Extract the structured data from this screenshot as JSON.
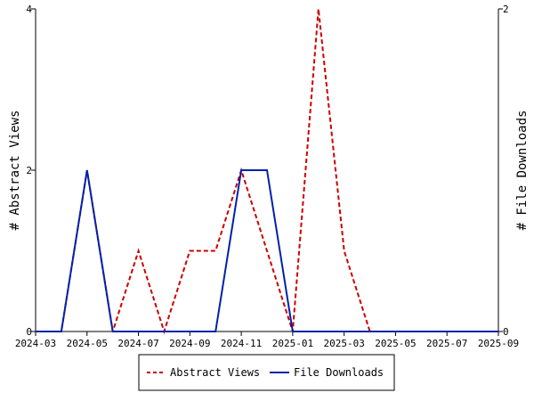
{
  "chart_data": {
    "type": "line",
    "x": [
      "2024-03",
      "2024-04",
      "2024-05",
      "2024-06",
      "2024-07",
      "2024-08",
      "2024-09",
      "2024-10",
      "2024-11",
      "2024-12",
      "2025-01",
      "2025-02",
      "2025-03",
      "2025-04",
      "2025-05",
      "2025-06",
      "2025-07",
      "2025-08",
      "2025-09"
    ],
    "x_tick_labels": [
      "2024-03",
      "2024-05",
      "2024-07",
      "2024-09",
      "2024-11",
      "2025-01",
      "2025-03",
      "2025-05",
      "2025-07",
      "2025-09"
    ],
    "ylabel_left": "# Abstract Views",
    "ylabel_right": "# File Downloads",
    "ylim_left": [
      0,
      4
    ],
    "ylim_right": [
      0,
      2
    ],
    "yticks_left": [
      "0",
      "2",
      "4"
    ],
    "yticks_right": [
      "0",
      "2"
    ],
    "series": [
      {
        "name": "Abstract Views",
        "axis": "left",
        "color": "#cc0000",
        "dash": "dashed",
        "values": [
          0,
          0,
          2,
          0,
          1,
          0,
          1,
          1,
          2,
          1,
          0,
          4,
          1,
          0,
          0,
          0,
          0,
          0,
          0
        ]
      },
      {
        "name": "File Downloads",
        "axis": "right",
        "color": "#0022aa",
        "dash": "solid",
        "values": [
          0,
          0,
          1,
          0,
          0,
          0,
          0,
          0,
          1,
          1,
          0,
          0,
          0,
          0,
          0,
          0,
          0,
          0,
          0
        ]
      }
    ],
    "grid": false,
    "legend_position": "bottom"
  }
}
